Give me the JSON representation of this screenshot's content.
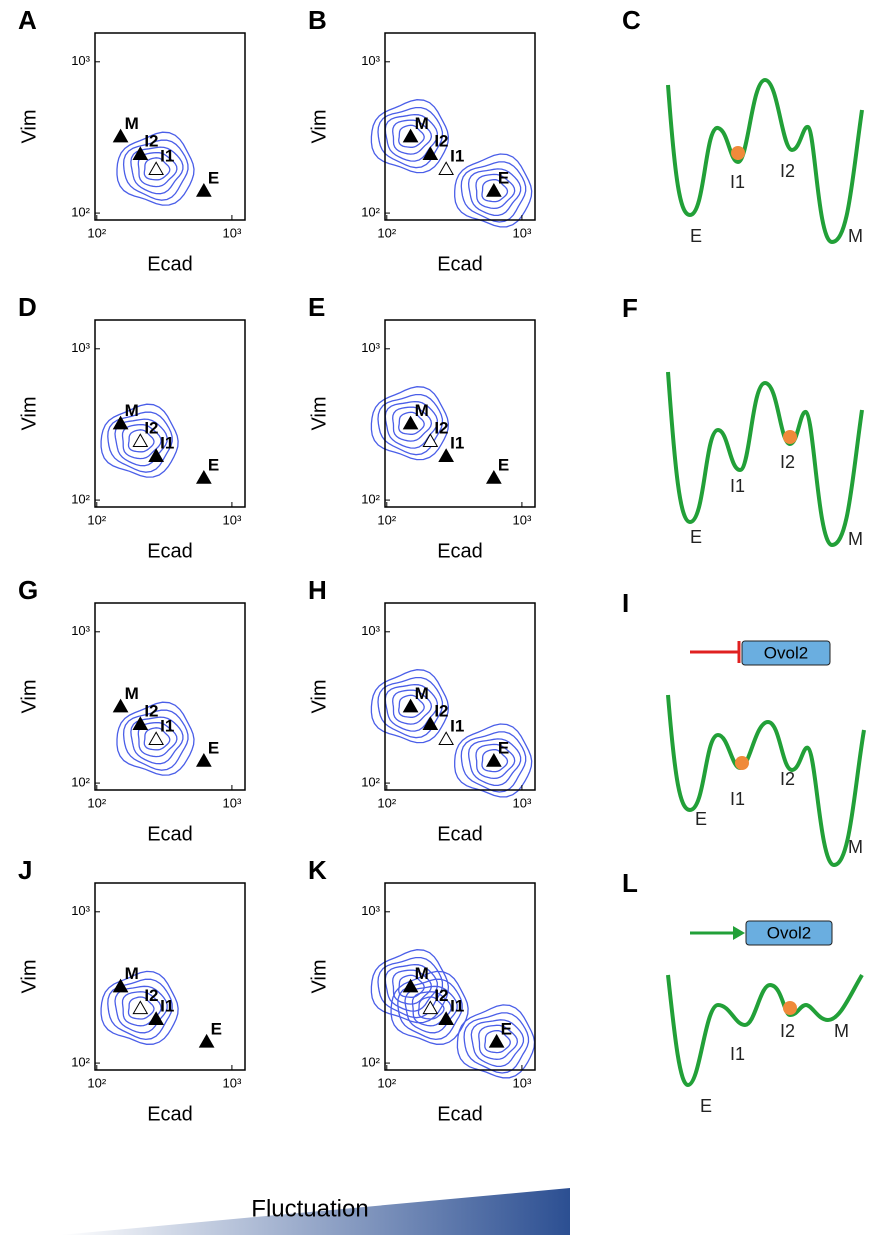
{
  "chart_data": [
    {
      "type": "scatter",
      "letter": "A",
      "xlabel": "Ecad",
      "ylabel": "Vim",
      "log": true,
      "xlim": [
        97,
        1250
      ],
      "ylim": [
        90,
        1550
      ],
      "xticks": [
        {
          "value": 100,
          "label": "10²"
        },
        {
          "value": 1000,
          "label": "10³"
        }
      ],
      "yticks": [
        {
          "value": 100,
          "label": "10²"
        },
        {
          "value": 1000,
          "label": "10³"
        }
      ],
      "labels": [
        "M",
        "I2",
        "I1",
        "E"
      ],
      "x": [
        150,
        210,
        275,
        620
      ],
      "values": [
        320,
        245,
        195,
        140
      ],
      "filled": [
        true,
        true,
        false,
        true
      ],
      "density_peaks": [
        2
      ],
      "color": "#4a5ee8"
    },
    {
      "type": "scatter",
      "letter": "B",
      "xlabel": "Ecad",
      "ylabel": "Vim",
      "log": true,
      "xlim": [
        97,
        1250
      ],
      "ylim": [
        90,
        1550
      ],
      "xticks": [
        {
          "value": 100,
          "label": "10²"
        },
        {
          "value": 1000,
          "label": "10³"
        }
      ],
      "yticks": [
        {
          "value": 100,
          "label": "10²"
        },
        {
          "value": 1000,
          "label": "10³"
        }
      ],
      "labels": [
        "M",
        "I2",
        "I1",
        "E"
      ],
      "x": [
        150,
        210,
        275,
        620
      ],
      "values": [
        320,
        245,
        195,
        140
      ],
      "filled": [
        true,
        true,
        false,
        true
      ],
      "density_peaks": [
        0,
        3
      ],
      "color": "#4a5ee8"
    },
    {
      "type": "scatter",
      "letter": "D",
      "xlabel": "Ecad",
      "ylabel": "Vim",
      "log": true,
      "xlim": [
        97,
        1250
      ],
      "ylim": [
        90,
        1550
      ],
      "xticks": [
        {
          "value": 100,
          "label": "10²"
        },
        {
          "value": 1000,
          "label": "10³"
        }
      ],
      "yticks": [
        {
          "value": 100,
          "label": "10²"
        },
        {
          "value": 1000,
          "label": "10³"
        }
      ],
      "labels": [
        "M",
        "I2",
        "I1",
        "E"
      ],
      "x": [
        150,
        210,
        275,
        620
      ],
      "values": [
        320,
        245,
        195,
        140
      ],
      "filled": [
        true,
        false,
        true,
        true
      ],
      "density_peaks": [
        1
      ],
      "color": "#4a5ee8"
    },
    {
      "type": "scatter",
      "letter": "E",
      "xlabel": "Ecad",
      "ylabel": "Vim",
      "log": true,
      "xlim": [
        97,
        1250
      ],
      "ylim": [
        90,
        1550
      ],
      "xticks": [
        {
          "value": 100,
          "label": "10²"
        },
        {
          "value": 1000,
          "label": "10³"
        }
      ],
      "yticks": [
        {
          "value": 100,
          "label": "10²"
        },
        {
          "value": 1000,
          "label": "10³"
        }
      ],
      "labels": [
        "M",
        "I2",
        "I1",
        "E"
      ],
      "x": [
        150,
        210,
        275,
        620
      ],
      "values": [
        320,
        245,
        195,
        140
      ],
      "filled": [
        true,
        false,
        true,
        true
      ],
      "density_peaks": [
        0
      ],
      "color": "#4a5ee8"
    },
    {
      "type": "scatter",
      "letter": "G",
      "xlabel": "Ecad",
      "ylabel": "Vim",
      "log": true,
      "xlim": [
        97,
        1250
      ],
      "ylim": [
        90,
        1550
      ],
      "xticks": [
        {
          "value": 100,
          "label": "10²"
        },
        {
          "value": 1000,
          "label": "10³"
        }
      ],
      "yticks": [
        {
          "value": 100,
          "label": "10²"
        },
        {
          "value": 1000,
          "label": "10³"
        }
      ],
      "labels": [
        "M",
        "I2",
        "I1",
        "E"
      ],
      "x": [
        150,
        210,
        275,
        620
      ],
      "values": [
        320,
        245,
        195,
        140
      ],
      "filled": [
        true,
        true,
        false,
        true
      ],
      "density_peaks": [
        2
      ],
      "color": "#4a5ee8"
    },
    {
      "type": "scatter",
      "letter": "H",
      "xlabel": "Ecad",
      "ylabel": "Vim",
      "log": true,
      "xlim": [
        97,
        1250
      ],
      "ylim": [
        90,
        1550
      ],
      "xticks": [
        {
          "value": 100,
          "label": "10²"
        },
        {
          "value": 1000,
          "label": "10³"
        }
      ],
      "yticks": [
        {
          "value": 100,
          "label": "10²"
        },
        {
          "value": 1000,
          "label": "10³"
        }
      ],
      "labels": [
        "M",
        "I2",
        "I1",
        "E"
      ],
      "x": [
        150,
        210,
        275,
        620
      ],
      "values": [
        320,
        245,
        195,
        140
      ],
      "filled": [
        true,
        true,
        false,
        true
      ],
      "density_peaks": [
        0,
        3
      ],
      "color": "#4a5ee8"
    },
    {
      "type": "scatter",
      "letter": "J",
      "xlabel": "Ecad",
      "ylabel": "Vim",
      "log": true,
      "xlim": [
        97,
        1250
      ],
      "ylim": [
        90,
        1550
      ],
      "xticks": [
        {
          "value": 100,
          "label": "10²"
        },
        {
          "value": 1000,
          "label": "10³"
        }
      ],
      "yticks": [
        {
          "value": 100,
          "label": "10²"
        },
        {
          "value": 1000,
          "label": "10³"
        }
      ],
      "labels": [
        "M",
        "I2",
        "I1",
        "E"
      ],
      "x": [
        150,
        210,
        275,
        650
      ],
      "values": [
        320,
        230,
        195,
        138
      ],
      "filled": [
        true,
        false,
        true,
        true
      ],
      "density_peaks": [
        1
      ],
      "color": "#4a5ee8"
    },
    {
      "type": "scatter",
      "letter": "K",
      "xlabel": "Ecad",
      "ylabel": "Vim",
      "log": true,
      "xlim": [
        97,
        1250
      ],
      "ylim": [
        90,
        1550
      ],
      "xticks": [
        {
          "value": 100,
          "label": "10²"
        },
        {
          "value": 1000,
          "label": "10³"
        }
      ],
      "yticks": [
        {
          "value": 100,
          "label": "10²"
        },
        {
          "value": 1000,
          "label": "10³"
        }
      ],
      "labels": [
        "M",
        "I2",
        "I1",
        "E"
      ],
      "x": [
        150,
        210,
        275,
        650
      ],
      "values": [
        320,
        230,
        195,
        138
      ],
      "filled": [
        true,
        false,
        true,
        true
      ],
      "density_peaks": [
        0,
        1,
        3
      ],
      "color": "#4a5ee8"
    }
  ],
  "landscapes": [
    {
      "letter": "C",
      "wells": [
        "E",
        "I1",
        "I2",
        "M"
      ]
    },
    {
      "letter": "F",
      "wells": [
        "E",
        "I1",
        "I2",
        "M"
      ]
    },
    {
      "letter": "I",
      "regulator": "Ovol2",
      "wells": [
        "E",
        "I1",
        "I2",
        "M"
      ]
    },
    {
      "letter": "L",
      "regulator": "Ovol2",
      "wells": [
        "E",
        "I1",
        "I2",
        "M"
      ]
    }
  ],
  "footer": {
    "label": "Fluctuation"
  }
}
